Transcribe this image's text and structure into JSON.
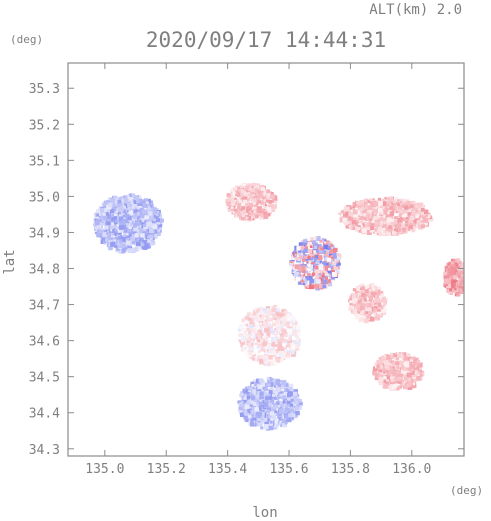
{
  "chart_data": {
    "type": "heatmap",
    "title": "2020/09/17 14:44:31",
    "altitude_label": "ALT(km)  2.0",
    "xlabel": "lon",
    "ylabel": "lat",
    "x_unit": "(deg)",
    "y_unit": "(deg)",
    "xlim": [
      134.88,
      136.17
    ],
    "ylim": [
      34.28,
      35.37
    ],
    "x_ticks": [
      135.0,
      135.2,
      135.4,
      135.6,
      135.8,
      136.0
    ],
    "x_tick_labels": [
      "135.0",
      "135.2",
      "135.4",
      "135.6",
      "135.8",
      "136.0"
    ],
    "y_ticks": [
      34.3,
      34.4,
      34.5,
      34.6,
      34.7,
      34.8,
      34.9,
      35.0,
      35.1,
      35.2,
      35.3
    ],
    "y_tick_labels": [
      "34.3",
      "34.4",
      "34.5",
      "34.6",
      "34.7",
      "34.8",
      "34.9",
      "35.0",
      "35.1",
      "35.2",
      "35.3"
    ],
    "colors": {
      "positive_strong": "#e84a5a",
      "positive_light": "#fbd4d8",
      "negative_strong": "#4a57e8",
      "negative_light": "#d4d8f7",
      "frame": "#8c8c8c"
    },
    "regions": [
      {
        "name": "northwest-blue",
        "lon": 135.07,
        "lat": 34.93,
        "rx": 0.11,
        "ry": 0.08,
        "value": -0.35
      },
      {
        "name": "north-pink",
        "lon": 135.47,
        "lat": 34.99,
        "rx": 0.08,
        "ry": 0.05,
        "value": 0.3
      },
      {
        "name": "northeast-pink",
        "lon": 135.91,
        "lat": 34.95,
        "rx": 0.15,
        "ry": 0.05,
        "value": 0.3
      },
      {
        "name": "central-mixed-north",
        "lon": 135.68,
        "lat": 34.82,
        "rx": 0.08,
        "ry": 0.07,
        "value": 0.0
      },
      {
        "name": "central-mixed",
        "lon": 135.53,
        "lat": 34.62,
        "rx": 0.1,
        "ry": 0.08,
        "value": 0.1
      },
      {
        "name": "east-pink",
        "lon": 135.85,
        "lat": 34.71,
        "rx": 0.06,
        "ry": 0.05,
        "value": 0.3
      },
      {
        "name": "southeast-pink",
        "lon": 135.95,
        "lat": 34.52,
        "rx": 0.08,
        "ry": 0.05,
        "value": 0.3
      },
      {
        "name": "south-blue",
        "lon": 135.53,
        "lat": 34.43,
        "rx": 0.1,
        "ry": 0.07,
        "value": -0.35
      },
      {
        "name": "far-east-edge",
        "lon": 136.14,
        "lat": 34.78,
        "rx": 0.04,
        "ry": 0.05,
        "value": 0.5
      }
    ]
  }
}
